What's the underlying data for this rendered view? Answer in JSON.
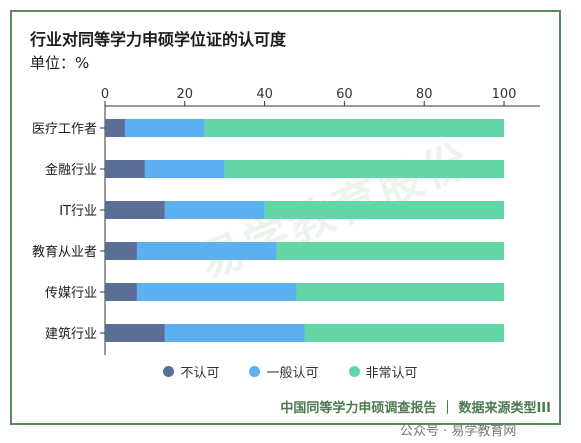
{
  "chart_data": {
    "type": "bar",
    "orientation": "horizontal",
    "stacked": true,
    "title": "行业对同等学力申硕学位证的认可度",
    "unit_label": "单位：%",
    "categories": [
      "医疗工作者",
      "金融行业",
      "IT行业",
      "教育从业者",
      "传媒行业",
      "建筑行业"
    ],
    "series": [
      {
        "name": "不认可",
        "color": "#5b6e96",
        "values": [
          5,
          10,
          15,
          8,
          8,
          15
        ]
      },
      {
        "name": "一般认可",
        "color": "#5cb0ef",
        "values": [
          20,
          20,
          25,
          35,
          40,
          35
        ]
      },
      {
        "name": "非常认可",
        "color": "#63d6a6",
        "values": [
          75,
          70,
          60,
          57,
          52,
          50
        ]
      }
    ],
    "xlim": [
      0,
      100
    ],
    "xticks": [
      0,
      20,
      40,
      60,
      80,
      100
    ],
    "x_axis_position": "top",
    "legend_position": "bottom",
    "grid": false
  },
  "footer": {
    "source": "中国同等学力申硕调查报告 ｜ 数据来源类型III"
  },
  "watermark": {
    "text": "易学教育股份"
  },
  "wechat_label": "公众号 · 易学教育网"
}
